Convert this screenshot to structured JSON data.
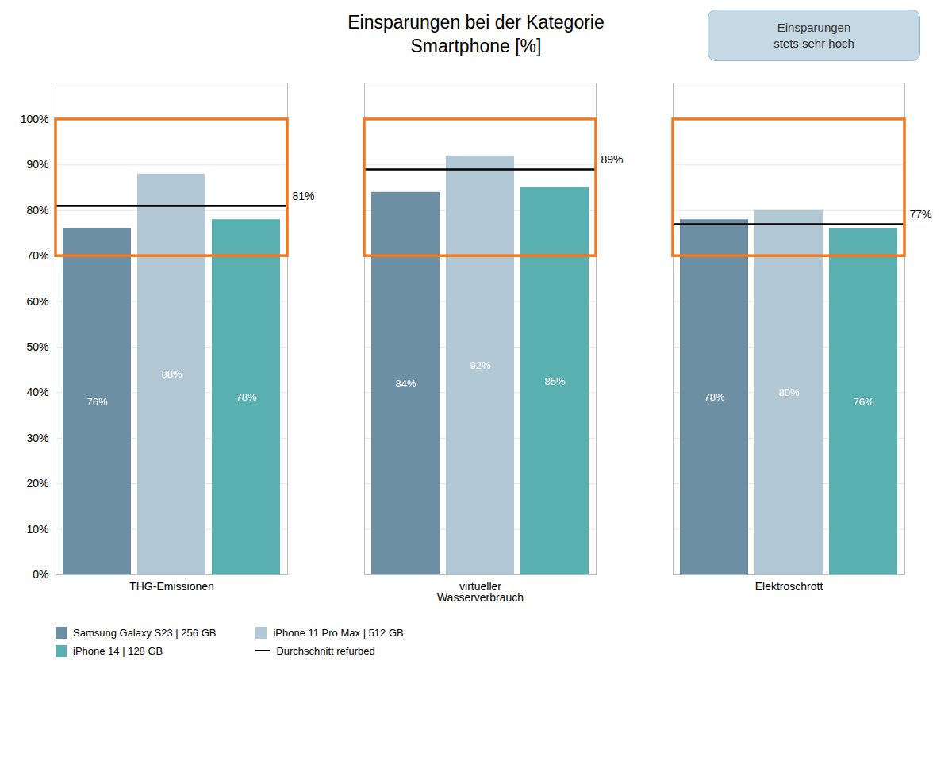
{
  "chart_data": {
    "type": "bar",
    "title": "Einsparungen bei der Kategorie\nSmartphone [%]",
    "categories": [
      "THG-Emissionen",
      "virtueller\nWasserverbrauch",
      "Elektroschrott"
    ],
    "series": [
      {
        "name": "Samsung Galaxy S23 | 256 GB",
        "color": "#6d8fa3",
        "values": [
          76,
          84,
          78
        ],
        "value_labels": [
          "76%",
          "84%",
          "78%"
        ]
      },
      {
        "name": "iPhone 11 Pro Max | 512 GB",
        "color": "#b3c8d5",
        "values": [
          88,
          92,
          80
        ],
        "value_labels": [
          "88%",
          "92%",
          "80%"
        ]
      },
      {
        "name": "iPhone 14 | 128 GB",
        "color": "#5aafb0",
        "values": [
          78,
          85,
          76
        ],
        "value_labels": [
          "78%",
          "85%",
          "76%"
        ]
      }
    ],
    "averages": {
      "name": "Durchschnitt refurbed",
      "color": "#000000",
      "values": [
        81,
        89,
        77
      ],
      "value_labels": [
        "81%",
        "89%",
        "77%"
      ]
    },
    "highlight": [
      70,
      100
    ],
    "highlight_color": "#f07820",
    "annotations": [
      "Einsparungen\nstets sehr hoch"
    ],
    "ylim": [
      0,
      108
    ],
    "yticks": [
      {
        "value": 0,
        "label": "0%"
      },
      {
        "value": 10,
        "label": "10%"
      },
      {
        "value": 20,
        "label": "20%"
      },
      {
        "value": 30,
        "label": "30%"
      },
      {
        "value": 40,
        "label": "40%"
      },
      {
        "value": 50,
        "label": "50%"
      },
      {
        "value": 60,
        "label": "60%"
      },
      {
        "value": 70,
        "label": "70%"
      },
      {
        "value": 80,
        "label": "80%"
      },
      {
        "value": 90,
        "label": "90%"
      },
      {
        "value": 100,
        "label": "100%"
      }
    ],
    "grid": true,
    "data_labels": true,
    "legend": "bottom"
  }
}
